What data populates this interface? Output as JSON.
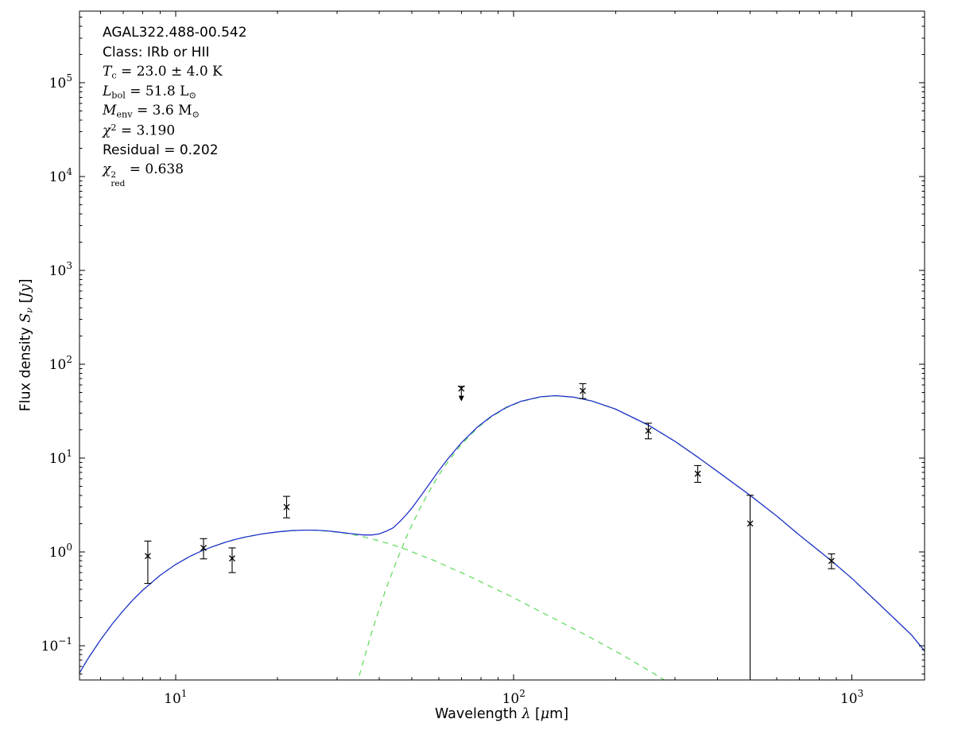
{
  "figure": {
    "background": "#ffffff",
    "frame_color": "#000000"
  },
  "annotations": {
    "lines": [
      {
        "name": "source-name",
        "style": "sans",
        "segments": [
          {
            "t": "AGAL322.488-00.542"
          }
        ]
      },
      {
        "name": "class-label",
        "style": "sans",
        "segments": [
          {
            "t": "Class: IRb or HII"
          }
        ]
      },
      {
        "name": "dust-temperature",
        "style": "math",
        "segments": [
          {
            "t": "T",
            "i": true
          },
          {
            "sub": "c"
          },
          {
            "t": " = 23.0 ± 4.0 K"
          }
        ]
      },
      {
        "name": "bolometric-luminosity",
        "style": "math",
        "segments": [
          {
            "t": "L",
            "i": true
          },
          {
            "sub": "bol"
          },
          {
            "t": " = 51.8 L"
          },
          {
            "sub": "⊙"
          }
        ]
      },
      {
        "name": "envelope-mass",
        "style": "math",
        "segments": [
          {
            "t": "M",
            "i": true
          },
          {
            "sub": "env"
          },
          {
            "t": " = 3.6 M"
          },
          {
            "sub": "⊙"
          }
        ]
      },
      {
        "name": "chi-squared",
        "style": "math",
        "segments": [
          {
            "t": "χ",
            "i": true
          },
          {
            "sup": "2"
          },
          {
            "t": " = 3.190"
          }
        ]
      },
      {
        "name": "residual",
        "style": "sans",
        "segments": [
          {
            "t": "Residual = 0.202"
          }
        ]
      },
      {
        "name": "reduced-chi-squared",
        "style": "math",
        "segments": [
          {
            "t": "χ",
            "i": true
          },
          {
            "stack": {
              "sup": "2",
              "sub": "red"
            }
          },
          {
            "t": " = 0.638"
          }
        ]
      }
    ]
  },
  "axes": {
    "xlabel_segments": [
      {
        "t": "Wavelength "
      },
      {
        "t": "λ",
        "i": true
      },
      {
        "t": " ["
      },
      {
        "t": "μ",
        "i": true
      },
      {
        "t": "m]"
      }
    ],
    "ylabel_segments": [
      {
        "t": "Flux density "
      },
      {
        "t": "S",
        "i": true
      },
      {
        "sub": "ν",
        "i": true
      },
      {
        "t": " ["
      },
      {
        "t": "Jy",
        "i": true
      },
      {
        "t": "]"
      }
    ]
  },
  "chart_data": {
    "type": "line",
    "title": "",
    "x_scale": "log",
    "y_scale": "log",
    "grid": false,
    "xlim": [
      5.2,
      1640
    ],
    "ylim": [
      0.043,
      580000
    ],
    "x_ticks": [
      {
        "value": 10,
        "base": "10",
        "exp": "1"
      },
      {
        "value": 100,
        "base": "10",
        "exp": "2"
      },
      {
        "value": 1000,
        "base": "10",
        "exp": "3"
      }
    ],
    "y_ticks": [
      {
        "value": 0.1,
        "base": "10",
        "exp": "−1"
      },
      {
        "value": 1,
        "base": "10",
        "exp": "0"
      },
      {
        "value": 10,
        "base": "10",
        "exp": "1"
      },
      {
        "value": 100,
        "base": "10",
        "exp": "2"
      },
      {
        "value": 1000,
        "base": "10",
        "exp": "3"
      },
      {
        "value": 10000,
        "base": "10",
        "exp": "4"
      },
      {
        "value": 100000,
        "base": "10",
        "exp": "5"
      }
    ],
    "series": [
      {
        "name": "warm-component",
        "role": "model component (hot/mid-IR blackbody)",
        "line_style": "dashed",
        "color": "#64dc64",
        "x": [
          5,
          5.5,
          6,
          6.5,
          7,
          7.5,
          8,
          8.5,
          9,
          10,
          11,
          12,
          13,
          14,
          15,
          16,
          18,
          20,
          22,
          24,
          26,
          28,
          30,
          33,
          36,
          40,
          44,
          48,
          53,
          58,
          64,
          70,
          78,
          86,
          95,
          105,
          120,
          135,
          155,
          180,
          210,
          245,
          285,
          330
        ],
        "y": [
          0.04,
          0.072,
          0.115,
          0.17,
          0.235,
          0.31,
          0.39,
          0.47,
          0.56,
          0.73,
          0.89,
          1.03,
          1.15,
          1.26,
          1.35,
          1.43,
          1.55,
          1.63,
          1.68,
          1.7,
          1.69,
          1.66,
          1.62,
          1.54,
          1.44,
          1.31,
          1.18,
          1.06,
          0.92,
          0.81,
          0.69,
          0.6,
          0.5,
          0.42,
          0.355,
          0.295,
          0.23,
          0.185,
          0.143,
          0.107,
          0.079,
          0.057,
          0.041,
          0.029
        ]
      },
      {
        "name": "cold-component",
        "role": "model component (cold greybody, Tc = 23 K)",
        "line_style": "dashed",
        "color": "#64dc64",
        "x": [
          32,
          34,
          36,
          38,
          40,
          42,
          45,
          48,
          50,
          53,
          55,
          58,
          60,
          64,
          70,
          78,
          86,
          95,
          105,
          120,
          133,
          150,
          170,
          200,
          250,
          300,
          350,
          400,
          500,
          600,
          700,
          870,
          1000,
          1200,
          1500,
          1800
        ],
        "y": [
          0.014,
          0.034,
          0.07,
          0.137,
          0.244,
          0.41,
          0.79,
          1.4,
          1.93,
          2.98,
          3.82,
          5.35,
          6.53,
          9.21,
          13.9,
          20.8,
          27.5,
          34.2,
          39.9,
          44.7,
          46,
          44.5,
          40.5,
          33.1,
          22.3,
          15,
          10.2,
          7.2,
          4,
          2.4,
          1.5,
          0.8,
          0.52,
          0.28,
          0.13,
          0.058
        ]
      },
      {
        "name": "model-total",
        "role": "total model SED",
        "line_style": "solid",
        "color": "#2233cc",
        "x": [
          5,
          5.5,
          6,
          6.5,
          7,
          7.5,
          8,
          8.5,
          9,
          10,
          11,
          12,
          13,
          14,
          15,
          16,
          18,
          20,
          22,
          24,
          26,
          28,
          30,
          33,
          36,
          38,
          40,
          42,
          44,
          46,
          48,
          50,
          53,
          55,
          58,
          60,
          64,
          70,
          78,
          86,
          95,
          105,
          120,
          133,
          150,
          170,
          200,
          250,
          300,
          350,
          400,
          500,
          600,
          700,
          870,
          1000,
          1200,
          1500,
          1800
        ],
        "y": [
          0.04,
          0.072,
          0.115,
          0.17,
          0.235,
          0.31,
          0.39,
          0.47,
          0.56,
          0.73,
          0.89,
          1.03,
          1.15,
          1.26,
          1.35,
          1.43,
          1.55,
          1.63,
          1.68,
          1.7,
          1.7,
          1.67,
          1.63,
          1.56,
          1.51,
          1.51,
          1.55,
          1.66,
          1.8,
          2.09,
          2.46,
          2.93,
          3.9,
          4.7,
          6.16,
          7.3,
          9.9,
          14.5,
          21.3,
          27.9,
          34.6,
          40.2,
          44.9,
          46.2,
          44.6,
          40.6,
          33.2,
          22.4,
          15,
          10.2,
          7.2,
          4,
          2.4,
          1.5,
          0.8,
          0.52,
          0.28,
          0.13,
          0.058
        ]
      }
    ],
    "points": {
      "name": "photometry",
      "marker": "x",
      "color": "#000000",
      "data": [
        {
          "x": 8.28,
          "y": 0.9,
          "lo": 0.46,
          "hi": 1.3
        },
        {
          "x": 12.1,
          "y": 1.1,
          "lo": 0.84,
          "hi": 1.38
        },
        {
          "x": 14.7,
          "y": 0.85,
          "lo": 0.6,
          "hi": 1.1
        },
        {
          "x": 21.3,
          "y": 3.0,
          "lo": 2.3,
          "hi": 3.9
        },
        {
          "x": 70,
          "y": 55,
          "lo": 46,
          "hi": 58,
          "uplim": true
        },
        {
          "x": 160,
          "y": 52,
          "lo": 43,
          "hi": 62
        },
        {
          "x": 250,
          "y": 19.5,
          "lo": 16,
          "hi": 23.5
        },
        {
          "x": 350,
          "y": 6.8,
          "lo": 5.5,
          "hi": 8.3
        },
        {
          "x": 500,
          "y": 2.0,
          "lo": 0.02,
          "hi": 4.0,
          "open_lo": true
        },
        {
          "x": 870,
          "y": 0.8,
          "lo": 0.66,
          "hi": 0.95
        }
      ]
    }
  }
}
